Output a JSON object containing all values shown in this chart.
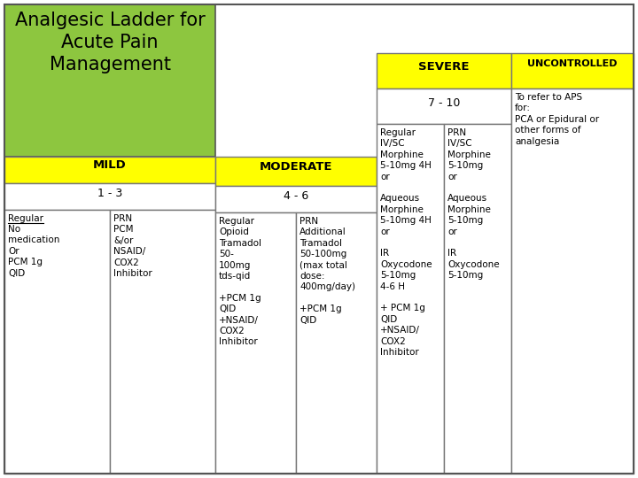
{
  "title": "Analgesic Ladder for\nAcute Pain\nManagement",
  "title_bg": "#8dc63f",
  "yellow": "#ffff00",
  "white": "#ffffff",
  "black": "#000000",
  "sections": {
    "mild_label": "MILD",
    "mild_range": "1 - 3",
    "mild_col1_line1": "Regular",
    "mild_col1_rest": "No\nmedication\nOr\nPCM 1g\nQID",
    "mild_col2_header": "PRN\nPCM\n&/or\nNSAID/\nCOX2\nInhibitor",
    "moderate_label": "MODERATE",
    "moderate_range": "4 - 6",
    "moderate_col1": "Regular\nOpioid\nTramadol\n50-\n100mg\ntds-qid\n\n+PCM 1g\nQID\n+NSAID/\nCOX2\nInhibitor",
    "moderate_col2": "PRN\nAdditional\nTramadol\n50-100mg\n(max total\ndose:\n400mg/day)\n\n+PCM 1g\nQID",
    "severe_label": "SEVERE",
    "severe_range": "7 - 10",
    "severe_col1": "Regular\nIV/SC\nMorphine\n5-10mg 4H\nor\n\nAqueous\nMorphine\n5-10mg 4H\nor\n\nIR\nOxycodone\n5-10mg\n4-6 H\n\n+ PCM 1g\nQID\n+NSAID/\nCOX2\nInhibitor",
    "severe_col2": "PRN\nIV/SC\nMorphine\n5-10mg\nor\n\nAqueous\nMorphine\n5-10mg\nor\n\nIR\nOxycodone\n5-10mg",
    "uncontrolled_label": "UNCONTROLLED",
    "uncontrolled_text": "To refer to APS\nfor:\nPCA or Epidural or\nother forms of\nanalgesia"
  }
}
